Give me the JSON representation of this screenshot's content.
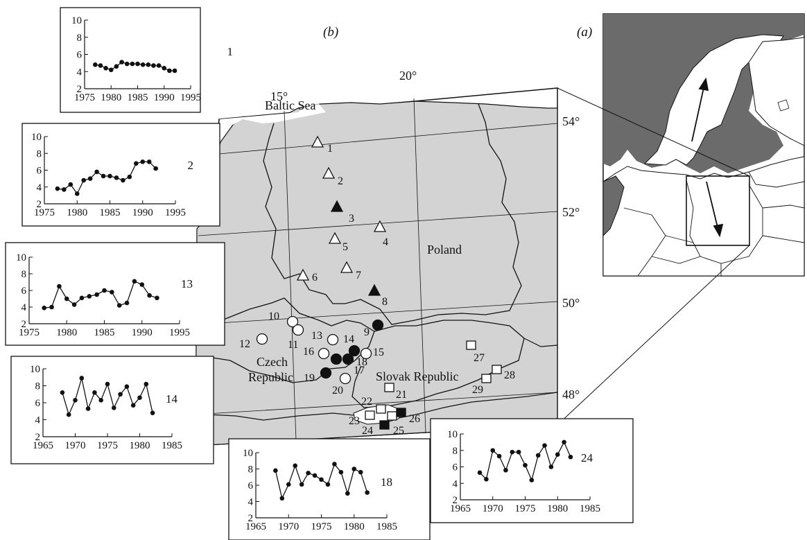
{
  "panel_b_label": "(b)",
  "panel_a_label": "(a)",
  "longitudes": [
    "15°",
    "20°"
  ],
  "latitudes": [
    "54°",
    "52°",
    "50°",
    "48°"
  ],
  "places": {
    "baltic": "Baltic Sea",
    "poland": "Poland",
    "czech_1": "Czech",
    "czech_2": "Republic",
    "slovak": "Slovak Republic"
  },
  "site_labels": [
    "1",
    "2",
    "3",
    "4",
    "5",
    "6",
    "7",
    "8",
    "9",
    "10",
    "11",
    "12",
    "13",
    "14",
    "15",
    "16",
    "17",
    "18",
    "19",
    "20",
    "21",
    "22",
    "23",
    "24",
    "25",
    "26",
    "27",
    "28",
    "29"
  ],
  "legend_symbols": {
    "open-triangle": "open-triangle-icon",
    "filled-triangle": "filled-triangle-icon",
    "open-circle": "open-circle-icon",
    "filled-circle": "filled-circle-icon",
    "open-square": "open-square-icon",
    "filled-square": "filled-square-icon"
  },
  "colors": {
    "land": "#d3d3d3",
    "sea": "#6b6b6b",
    "ink": "#111111"
  },
  "chart_data": [
    {
      "type": "line",
      "id": "1",
      "ylim": [
        2,
        10
      ],
      "yticks": [
        2,
        4,
        6,
        8,
        10
      ],
      "xlim": [
        1975,
        1995
      ],
      "xticks": [
        1975,
        1980,
        1985,
        1990,
        1995
      ],
      "x": [
        1977,
        1978,
        1979,
        1980,
        1981,
        1982,
        1983,
        1984,
        1985,
        1986,
        1987,
        1988,
        1989,
        1990,
        1991,
        1992
      ],
      "y": [
        4.8,
        4.7,
        4.4,
        4.2,
        4.6,
        5.1,
        4.9,
        4.9,
        4.9,
        4.8,
        4.8,
        4.7,
        4.7,
        4.4,
        4.1,
        4.1
      ]
    },
    {
      "type": "line",
      "id": "2",
      "ylim": [
        2,
        10
      ],
      "yticks": [
        2,
        4,
        6,
        8,
        10
      ],
      "xlim": [
        1975,
        1995
      ],
      "xticks": [
        1975,
        1980,
        1985,
        1990,
        1995
      ],
      "x": [
        1977,
        1978,
        1979,
        1980,
        1981,
        1982,
        1983,
        1984,
        1985,
        1986,
        1987,
        1988,
        1989,
        1990,
        1991,
        1992
      ],
      "y": [
        3.8,
        3.7,
        4.3,
        3.2,
        4.8,
        5.0,
        5.8,
        5.3,
        5.3,
        5.1,
        4.8,
        5.2,
        6.8,
        7.0,
        7.0,
        6.2
      ]
    },
    {
      "type": "line",
      "id": "13",
      "ylim": [
        2,
        10
      ],
      "yticks": [
        2,
        4,
        6,
        8,
        10
      ],
      "xlim": [
        1975,
        1995
      ],
      "xticks": [
        1975,
        1980,
        1985,
        1990,
        1995
      ],
      "x": [
        1977,
        1978,
        1979,
        1980,
        1981,
        1982,
        1983,
        1984,
        1985,
        1986,
        1987,
        1988,
        1989,
        1990,
        1991,
        1992
      ],
      "y": [
        3.9,
        4.0,
        6.5,
        5.0,
        4.3,
        5.1,
        5.3,
        5.5,
        6.0,
        5.8,
        4.2,
        4.5,
        7.1,
        6.7,
        5.4,
        5.1
      ]
    },
    {
      "type": "line",
      "id": "14",
      "ylim": [
        2,
        10
      ],
      "yticks": [
        2,
        4,
        6,
        8,
        10
      ],
      "xlim": [
        1965,
        1985
      ],
      "xticks": [
        1965,
        1970,
        1975,
        1980,
        1985
      ],
      "x": [
        1968,
        1969,
        1970,
        1971,
        1972,
        1973,
        1974,
        1975,
        1976,
        1977,
        1978,
        1979,
        1980,
        1981,
        1982
      ],
      "y": [
        7.2,
        4.6,
        6.3,
        8.9,
        5.3,
        7.2,
        6.3,
        8.2,
        5.4,
        7.0,
        7.9,
        5.7,
        6.6,
        8.2,
        4.8
      ]
    },
    {
      "type": "line",
      "id": "18",
      "ylim": [
        2,
        10
      ],
      "yticks": [
        2,
        4,
        6,
        8,
        10
      ],
      "xlim": [
        1965,
        1985
      ],
      "xticks": [
        1965,
        1970,
        1975,
        1980,
        1985
      ],
      "x": [
        1968,
        1969,
        1970,
        1971,
        1972,
        1973,
        1974,
        1975,
        1976,
        1977,
        1978,
        1979,
        1980,
        1981,
        1982
      ],
      "y": [
        7.8,
        4.4,
        6.1,
        8.4,
        6.1,
        7.5,
        7.2,
        6.7,
        6.1,
        8.6,
        7.6,
        5.0,
        8.0,
        7.6,
        5.1
      ]
    },
    {
      "type": "line",
      "id": "24",
      "ylim": [
        2,
        10
      ],
      "yticks": [
        2,
        4,
        6,
        8,
        10
      ],
      "xlim": [
        1965,
        1985
      ],
      "xticks": [
        1965,
        1970,
        1975,
        1980,
        1985
      ],
      "x": [
        1968,
        1969,
        1970,
        1971,
        1972,
        1973,
        1974,
        1975,
        1976,
        1977,
        1978,
        1979,
        1980,
        1981,
        1982
      ],
      "y": [
        5.3,
        4.5,
        8.0,
        7.3,
        5.6,
        7.8,
        7.8,
        6.2,
        4.4,
        7.4,
        8.6,
        6.0,
        7.5,
        9.0,
        7.2
      ]
    }
  ]
}
